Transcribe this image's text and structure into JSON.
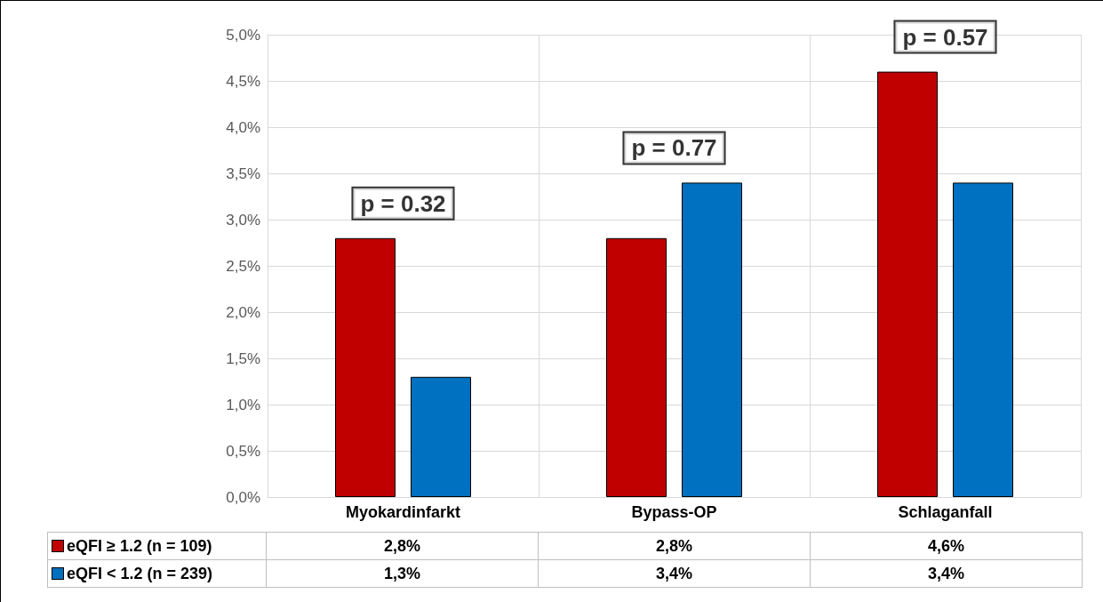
{
  "chart_data": {
    "type": "bar",
    "categories": [
      "Myokardinfarkt",
      "Bypass-OP",
      "Schlaganfall"
    ],
    "series": [
      {
        "name": "eQFI ≥ 1.2 (n = 109)",
        "color": "#c00000",
        "values": [
          2.8,
          2.8,
          4.6
        ],
        "value_labels": [
          "2,8%",
          "2,8%",
          "4,6%"
        ]
      },
      {
        "name": "eQFI < 1.2 (n = 239)",
        "color": "#0070c0",
        "values": [
          1.3,
          3.4,
          3.4
        ],
        "value_labels": [
          "1,3%",
          "3,4%",
          "3,4%"
        ]
      }
    ],
    "ylim": [
      0,
      5
    ],
    "yticks": [
      {
        "value": 0,
        "label": "0,0%"
      },
      {
        "value": 0.5,
        "label": "0,5%"
      },
      {
        "value": 1,
        "label": "1,0%"
      },
      {
        "value": 1.5,
        "label": "1,5%"
      },
      {
        "value": 2,
        "label": "2,0%"
      },
      {
        "value": 2.5,
        "label": "2,5%"
      },
      {
        "value": 3,
        "label": "3,0%"
      },
      {
        "value": 3.5,
        "label": "3,5%"
      },
      {
        "value": 4,
        "label": "4,0%"
      },
      {
        "value": 4.5,
        "label": "4,5%"
      },
      {
        "value": 5,
        "label": "5,0%"
      }
    ],
    "annotations": [
      "p = 0.32",
      "p = 0.77",
      "p = 0.57"
    ],
    "grid": true,
    "legend": "bottom"
  }
}
